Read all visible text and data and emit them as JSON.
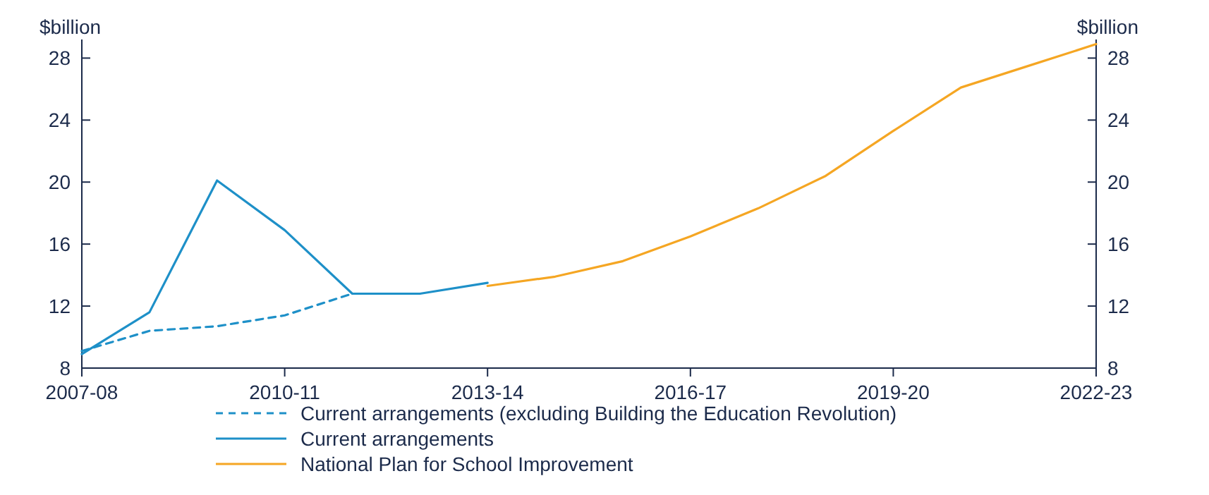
{
  "chart_data": {
    "type": "line",
    "ylabel": "$billion",
    "y2label": "$billion",
    "categories": [
      "2007-08",
      null,
      null,
      "2010-11",
      null,
      null,
      "2013-14",
      null,
      null,
      "2016-17",
      null,
      null,
      "2019-20",
      null,
      null,
      "2022-23"
    ],
    "series": [
      {
        "name": "Current arrangements (excluding Building the Education Revolution)",
        "color": "#1e90c8",
        "line_style": "dashed",
        "values": [
          9.1,
          10.4,
          10.7,
          11.4,
          12.8,
          null,
          null,
          null,
          null,
          null,
          null,
          null,
          null,
          null,
          null,
          null
        ]
      },
      {
        "name": "Current arrangements",
        "color": "#1e90c8",
        "line_style": "solid",
        "values": [
          8.9,
          11.6,
          20.1,
          16.9,
          12.8,
          12.8,
          13.5,
          null,
          null,
          null,
          null,
          null,
          null,
          null,
          null,
          null
        ]
      },
      {
        "name": "National Plan for School Improvement",
        "color": "#f5a623",
        "line_style": "solid",
        "values": [
          null,
          null,
          null,
          null,
          null,
          null,
          13.3,
          13.9,
          14.9,
          16.5,
          18.3,
          20.4,
          23.3,
          26.1,
          27.5,
          28.9
        ]
      }
    ],
    "ylim": [
      8,
      29.2
    ],
    "yticks": [
      8,
      12,
      16,
      20,
      24,
      28
    ],
    "y2lim": [
      8,
      29.2
    ],
    "y2ticks": [
      8,
      12,
      16,
      20,
      24,
      28
    ],
    "legend": "bottom",
    "grid": false
  }
}
